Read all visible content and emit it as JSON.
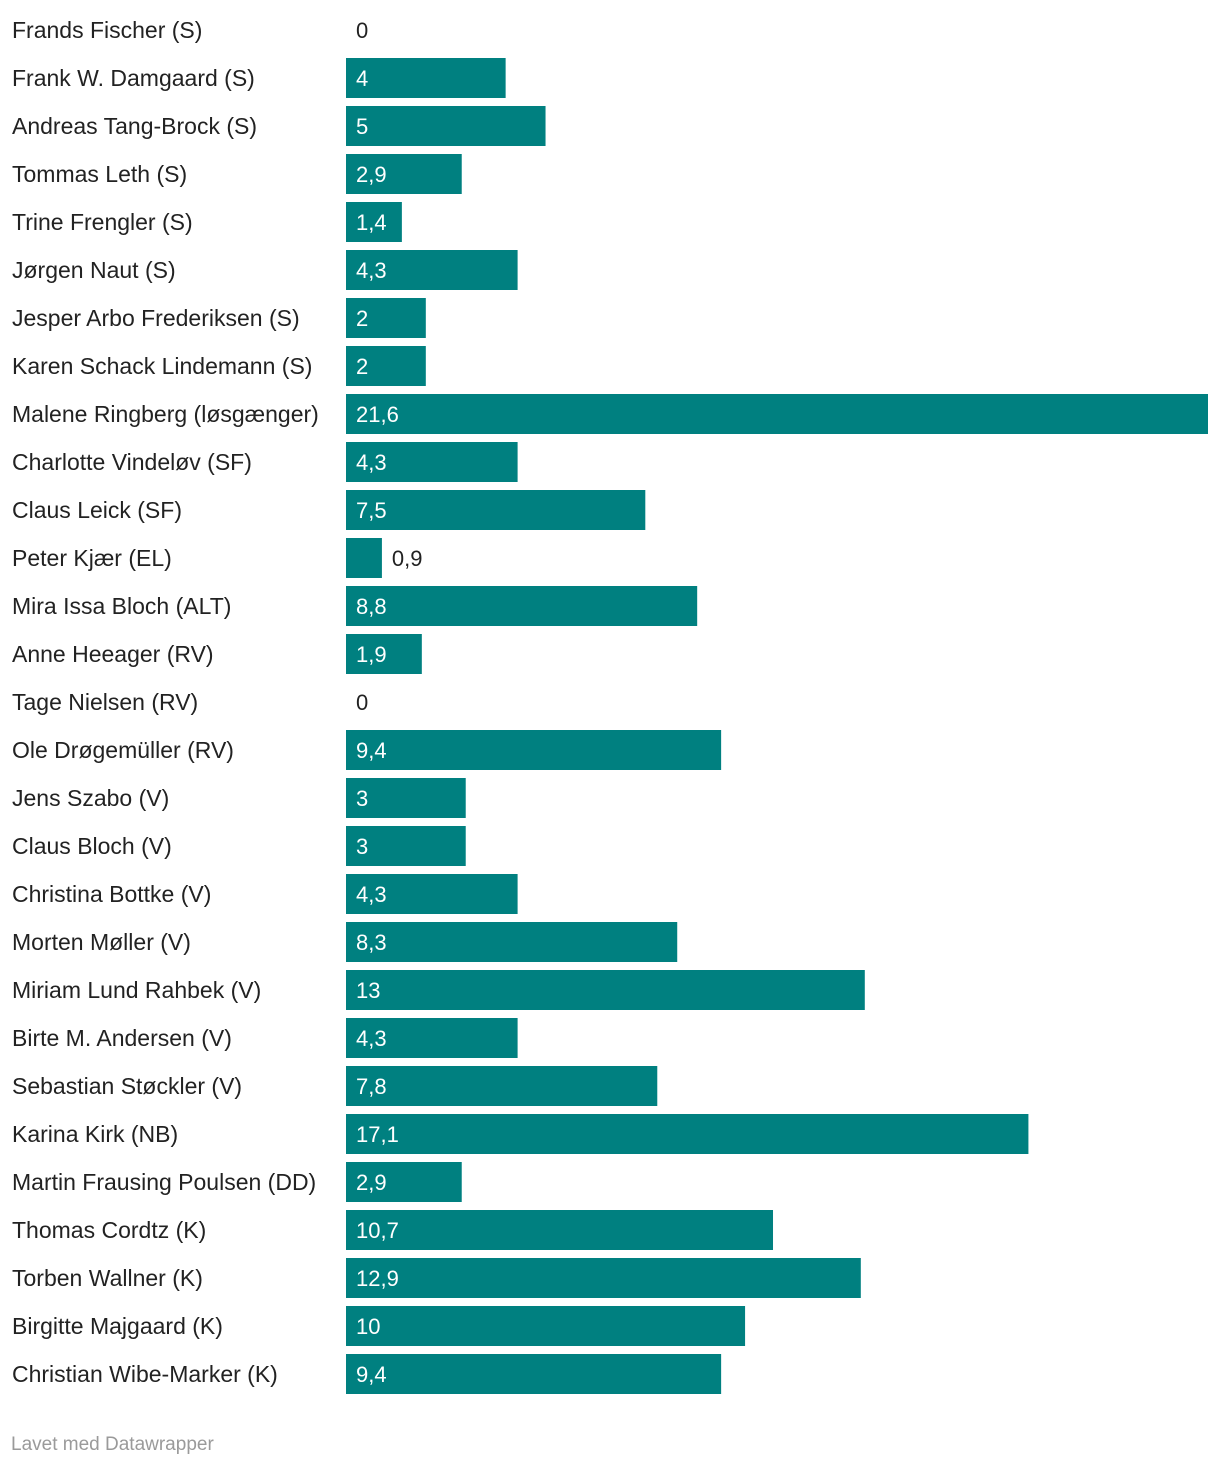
{
  "chart_data": {
    "type": "bar",
    "orientation": "horizontal",
    "title": "",
    "xlabel": "",
    "ylabel": "",
    "xlim": [
      0,
      21.6
    ],
    "grid": false,
    "bar_color": "#008080",
    "categories": [
      "Frands Fischer (S)",
      "Frank W. Damgaard (S)",
      "Andreas Tang-Brock (S)",
      "Tommas Leth (S)",
      "Trine Frengler (S)",
      "Jørgen Naut (S)",
      "Jesper Arbo Frederiksen (S)",
      "Karen Schack Lindemann (S)",
      "Malene Ringberg (løsgænger)",
      "Charlotte Vindeløv (SF)",
      "Claus Leick (SF)",
      "Peter Kjær (EL)",
      "Mira Issa Bloch (ALT)",
      "Anne Heeager (RV)",
      "Tage Nielsen (RV)",
      "Ole Drøgemüller (RV)",
      "Jens Szabo (V)",
      "Claus Bloch (V)",
      "Christina Bottke (V)",
      "Morten Møller (V)",
      "Miriam Lund Rahbek (V)",
      "Birte M. Andersen (V)",
      "Sebastian Støckler (V)",
      "Karina Kirk (NB)",
      "Martin Frausing Poulsen (DD)",
      "Thomas Cordtz (K)",
      "Torben Wallner (K)",
      "Birgitte Majgaard (K)",
      "Christian Wibe-Marker (K)"
    ],
    "values": [
      0,
      4,
      5,
      2.9,
      1.4,
      4.3,
      2,
      2,
      21.6,
      4.3,
      7.5,
      0.9,
      8.8,
      1.9,
      0,
      9.4,
      3,
      3,
      4.3,
      8.3,
      13,
      4.3,
      7.8,
      17.1,
      2.9,
      10.7,
      12.9,
      10,
      9.4
    ],
    "value_labels": [
      "0",
      "4",
      "5",
      "2,9",
      "1,4",
      "4,3",
      "2",
      "2",
      "21,6",
      "4,3",
      "7,5",
      "0,9",
      "8,8",
      "1,9",
      "0",
      "9,4",
      "3",
      "3",
      "4,3",
      "8,3",
      "13",
      "4,3",
      "7,8",
      "17,1",
      "2,9",
      "10,7",
      "12,9",
      "10",
      "9,4"
    ]
  },
  "footer": "Lavet med Datawrapper"
}
